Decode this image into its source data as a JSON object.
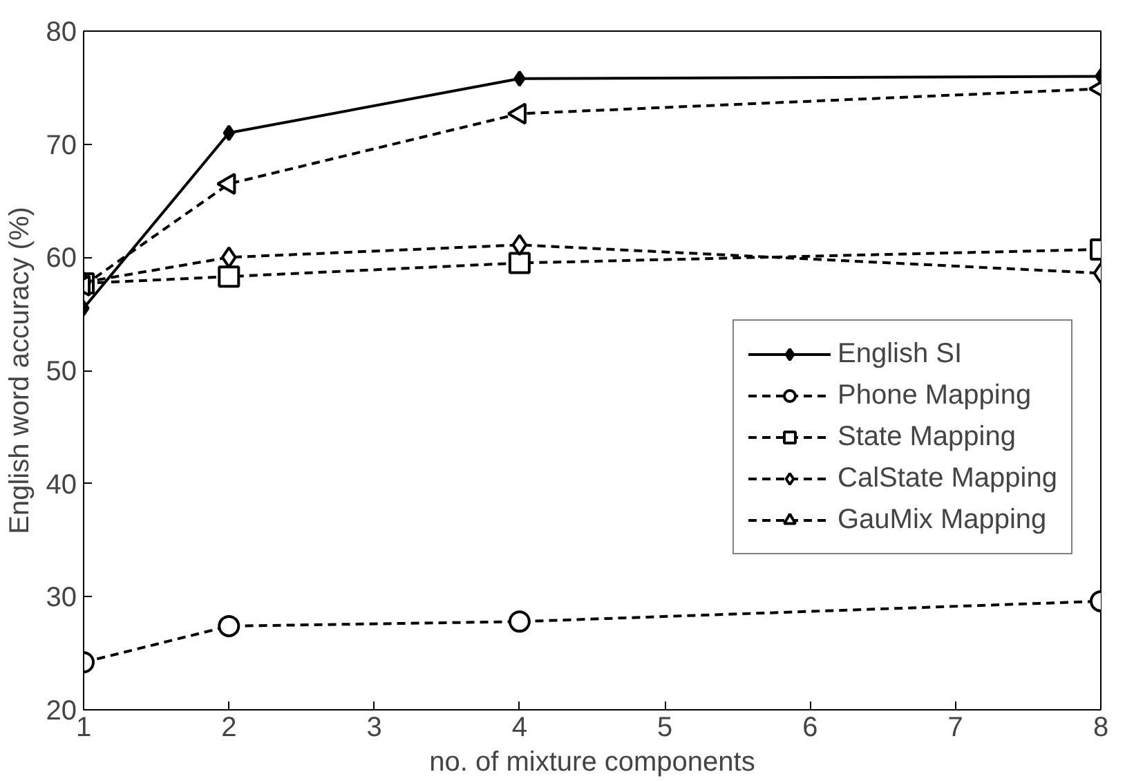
{
  "chart_data": {
    "type": "line",
    "xlabel": "no. of mixture components",
    "ylabel": "English word accuracy (%)",
    "x": [
      1,
      2,
      4,
      8
    ],
    "series": [
      {
        "name": "English SI",
        "color": "#000000",
        "values": [
          55.5,
          71,
          75.8,
          76
        ],
        "marker": "diamond",
        "line_style": "solid"
      },
      {
        "name": "Phone Mapping",
        "color": "#000000",
        "values": [
          24.2,
          27.4,
          27.8,
          29.6
        ],
        "marker": "circle",
        "line_style": "dashed"
      },
      {
        "name": "State Mapping",
        "color": "#000000",
        "values": [
          57.7,
          58.3,
          59.5,
          60.7
        ],
        "marker": "square",
        "line_style": "dashed"
      },
      {
        "name": "CalState Mapping",
        "color": "#000000",
        "values": [
          57.8,
          60,
          61.1,
          58.6
        ],
        "marker": "diamond",
        "line_style": "dashed"
      },
      {
        "name": "GauMix Mapping",
        "color": "#000000",
        "values": [
          57.5,
          66.5,
          72.7,
          74.9
        ],
        "marker": "triangle",
        "line_style": "dashed"
      }
    ],
    "xlim": [
      1,
      8
    ],
    "xticks": [
      1,
      2,
      3,
      4,
      5,
      6,
      7,
      8
    ],
    "ylim": [
      20,
      80
    ],
    "yticks": [
      20,
      30,
      40,
      50,
      60,
      70,
      80
    ],
    "grid": false,
    "legend": "right"
  }
}
